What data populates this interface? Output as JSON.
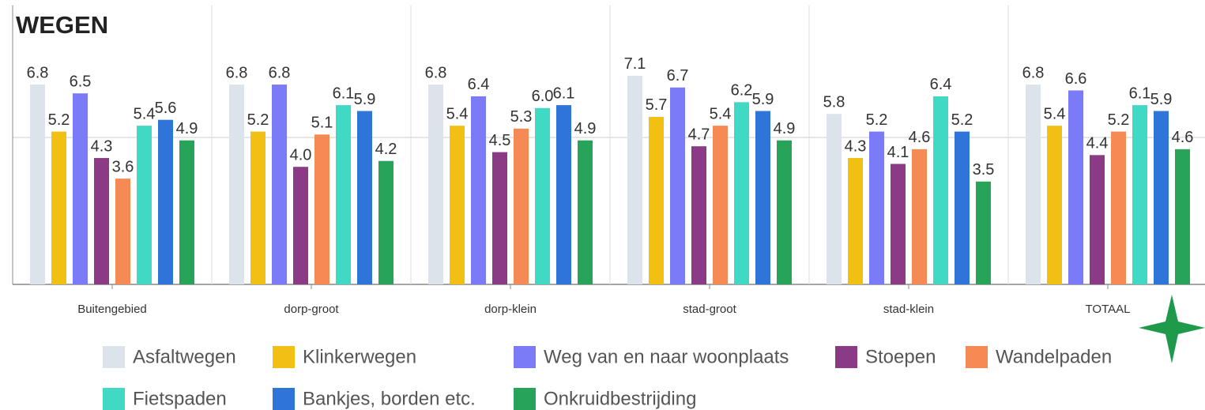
{
  "chart_data": {
    "type": "bar",
    "title": "WEGEN",
    "categories": [
      "Buitengebied",
      "dorp-groot",
      "dorp-klein",
      "stad-groot",
      "stad-klein",
      "TOTAAL"
    ],
    "series": [
      {
        "name": "Asfaltwegen",
        "color": "#dde3ea",
        "values": [
          6.8,
          6.8,
          6.8,
          7.1,
          5.8,
          6.8
        ]
      },
      {
        "name": "Klinkerwegen",
        "color": "#f2c012",
        "values": [
          5.2,
          5.2,
          5.4,
          5.7,
          4.3,
          5.4
        ]
      },
      {
        "name": "Weg van en naar woonplaats",
        "color": "#7b7bf7",
        "values": [
          6.5,
          6.8,
          6.4,
          6.7,
          5.2,
          6.6
        ]
      },
      {
        "name": "Stoepen",
        "color": "#8b3a86",
        "values": [
          4.3,
          4.0,
          4.5,
          4.7,
          4.1,
          4.4
        ],
        "value_labels": [
          "4.3",
          "4.0",
          "4.5",
          "4.7",
          "4.1",
          "4.4"
        ]
      },
      {
        "name": "Wandelpaden",
        "color": "#f58a55",
        "values": [
          3.6,
          5.1,
          5.3,
          5.4,
          4.6,
          5.2
        ]
      },
      {
        "name": "Fietspaden",
        "color": "#3fd9c4",
        "values": [
          5.4,
          6.1,
          6.0,
          6.2,
          6.4,
          6.1
        ],
        "value_labels": [
          "5.4",
          "6.1",
          "6.0",
          "6.2",
          "6.4",
          "6.1"
        ]
      },
      {
        "name": "Bankjes, borden etc.",
        "color": "#2f74d8",
        "values": [
          5.6,
          5.9,
          6.1,
          5.9,
          5.2,
          5.9
        ]
      },
      {
        "name": "Onkruidbestrijding",
        "color": "#27a35a",
        "values": [
          4.9,
          4.2,
          4.9,
          4.9,
          3.5,
          4.6
        ]
      }
    ],
    "ylim": [
      0,
      9.5
    ],
    "yticks": [
      0,
      5
    ],
    "grid": true
  }
}
